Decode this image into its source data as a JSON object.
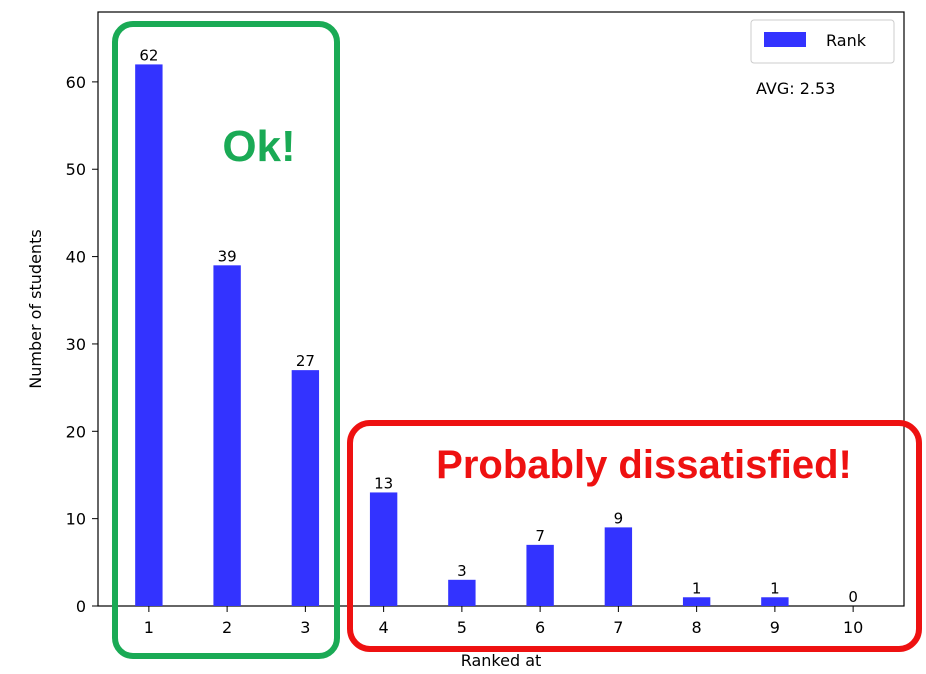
{
  "chart_data": {
    "type": "bar",
    "categories": [
      "1",
      "2",
      "3",
      "4",
      "5",
      "6",
      "7",
      "8",
      "9",
      "10"
    ],
    "series": [
      {
        "name": "Rank",
        "values": [
          62,
          39,
          27,
          13,
          3,
          7,
          9,
          1,
          1,
          0
        ],
        "color": "#3333ff"
      }
    ],
    "data_labels": [
      "62",
      "39",
      "27",
      "13",
      "3",
      "7",
      "9",
      "1",
      "1",
      "0"
    ],
    "xlabel": "Ranked at",
    "ylabel": "Number of students",
    "ylim": [
      0,
      68
    ],
    "yticks": [
      0,
      10,
      20,
      30,
      40,
      50,
      60
    ],
    "grid": false,
    "legend": {
      "position": "top-right",
      "entries": [
        "Rank"
      ]
    },
    "annotations": {
      "avg": "AVG: 2.53",
      "good_group": {
        "text": "Ok!",
        "categories": [
          "1",
          "2",
          "3"
        ],
        "color": "#1aaa55"
      },
      "bad_group": {
        "text": "Probably dissatisfied!",
        "categories": [
          "4",
          "5",
          "6",
          "7",
          "8",
          "9",
          "10"
        ],
        "color": "#ee1111"
      }
    }
  }
}
